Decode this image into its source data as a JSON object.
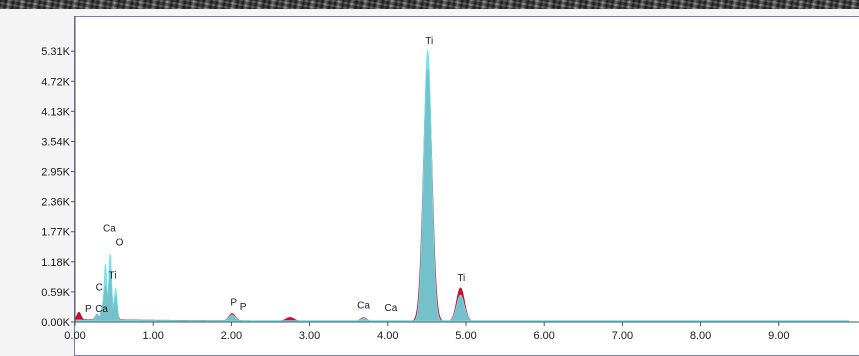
{
  "chart_data": {
    "type": "area",
    "title": "",
    "xlabel": "",
    "ylabel": "",
    "xlim": [
      0.0,
      9.9
    ],
    "ylim": [
      0.0,
      5.6
    ],
    "y_unit": "K counts",
    "y_tick_labels": [
      "0.00K",
      "0.59K",
      "1.18K",
      "1.77K",
      "2.36K",
      "2.95K",
      "3.54K",
      "4.13K",
      "4.72K",
      "5.31K"
    ],
    "y_tick_values": [
      0.0,
      0.59,
      1.18,
      1.77,
      2.36,
      2.95,
      3.54,
      4.13,
      4.72,
      5.31
    ],
    "x_tick_labels": [
      "0.00",
      "1.00",
      "2.00",
      "3.00",
      "4.00",
      "5.00",
      "6.00",
      "7.00",
      "8.00",
      "9.00"
    ],
    "x_tick_values": [
      0,
      1,
      2,
      3,
      4,
      5,
      6,
      7,
      8,
      9
    ],
    "grid": false,
    "spectra": [
      {
        "color": "#c8102e",
        "peaks": [
          {
            "x": 0.05,
            "y": 0.14,
            "w": 0.025
          },
          {
            "x": 0.28,
            "y": 0.1,
            "w": 0.02
          },
          {
            "x": 0.35,
            "y": 0.22,
            "w": 0.02
          },
          {
            "x": 0.39,
            "y": 0.62,
            "w": 0.018
          },
          {
            "x": 0.45,
            "y": 0.95,
            "w": 0.02
          },
          {
            "x": 0.52,
            "y": 0.45,
            "w": 0.02
          },
          {
            "x": 2.01,
            "y": 0.14,
            "w": 0.04
          },
          {
            "x": 2.75,
            "y": 0.07,
            "w": 0.05
          },
          {
            "x": 3.69,
            "y": 0.07,
            "w": 0.04
          },
          {
            "x": 4.51,
            "y": 4.95,
            "w": 0.055
          },
          {
            "x": 4.93,
            "y": 0.66,
            "w": 0.05
          }
        ],
        "background": 0.05
      },
      {
        "color": "#66e0e6",
        "peaks": [
          {
            "x": 0.28,
            "y": 0.1,
            "w": 0.02
          },
          {
            "x": 0.35,
            "y": 0.25,
            "w": 0.02
          },
          {
            "x": 0.39,
            "y": 1.05,
            "w": 0.016
          },
          {
            "x": 0.45,
            "y": 1.3,
            "w": 0.018
          },
          {
            "x": 0.52,
            "y": 0.62,
            "w": 0.018
          },
          {
            "x": 2.01,
            "y": 0.12,
            "w": 0.04
          },
          {
            "x": 3.69,
            "y": 0.06,
            "w": 0.04
          },
          {
            "x": 4.51,
            "y": 5.31,
            "w": 0.05
          },
          {
            "x": 4.93,
            "y": 0.52,
            "w": 0.05
          }
        ],
        "background": 0.04
      }
    ],
    "peak_labels": [
      {
        "text": "P",
        "x": 0.17,
        "y": 0.2
      },
      {
        "text": "Ca",
        "x": 0.34,
        "y": 0.2
      },
      {
        "text": "C",
        "x": 0.31,
        "y": 0.62
      },
      {
        "text": "Ti",
        "x": 0.48,
        "y": 0.85
      },
      {
        "text": "Ca",
        "x": 0.44,
        "y": 1.77
      },
      {
        "text": "O",
        "x": 0.57,
        "y": 1.5
      },
      {
        "text": "P",
        "x": 2.03,
        "y": 0.32
      },
      {
        "text": "P",
        "x": 2.15,
        "y": 0.24
      },
      {
        "text": "Ca",
        "x": 3.69,
        "y": 0.26
      },
      {
        "text": "Ca",
        "x": 4.04,
        "y": 0.22
      },
      {
        "text": "Ti",
        "x": 4.53,
        "y": 5.45
      },
      {
        "text": "Ti",
        "x": 4.94,
        "y": 0.8
      }
    ]
  }
}
